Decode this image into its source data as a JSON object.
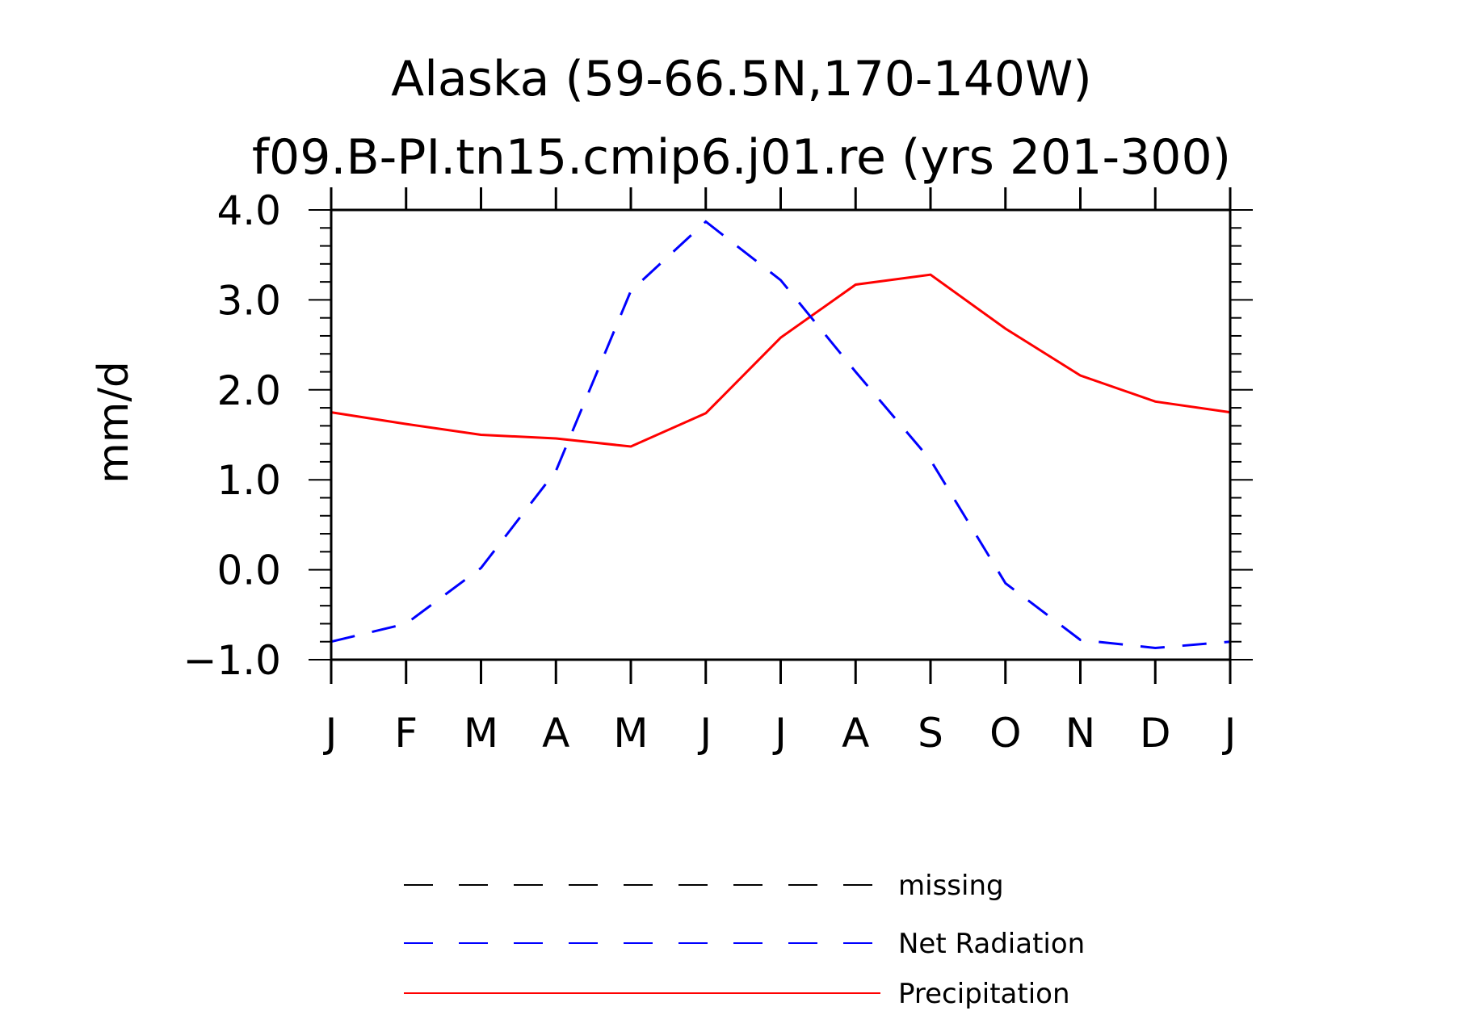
{
  "chart_data": {
    "type": "line",
    "title": "Alaska (59-66.5N,170-140W)",
    "subtitle": "f09.B-PI.tn15.cmip6.j01.re (yrs 201-300)",
    "xlabel": "",
    "ylabel": "mm/d",
    "categories": [
      "J",
      "F",
      "M",
      "A",
      "M",
      "J",
      "J",
      "A",
      "S",
      "O",
      "N",
      "D",
      "J"
    ],
    "ylim": [
      -1.0,
      4.0
    ],
    "yticks": [
      "-1.0",
      "0.0",
      "1.0",
      "2.0",
      "3.0",
      "4.0"
    ],
    "grid": false,
    "legend_position": "bottom",
    "series": [
      {
        "name": "Precipitation",
        "color": "#ff0000",
        "style": "solid",
        "values": [
          1.75,
          1.62,
          1.5,
          1.46,
          1.37,
          1.74,
          2.58,
          3.17,
          3.28,
          2.68,
          2.16,
          1.87,
          1.75
        ]
      },
      {
        "name": "Net Radiation",
        "color": "#0000ff",
        "style": "dashed",
        "values": [
          -0.8,
          -0.6,
          0.02,
          1.1,
          3.1,
          3.87,
          3.22,
          2.2,
          1.22,
          -0.15,
          -0.78,
          -0.87,
          -0.8
        ]
      }
    ],
    "legend": [
      {
        "label": "missing",
        "color": "#000000",
        "style": "dashed"
      },
      {
        "label": "Net Radiation",
        "color": "#0000ff",
        "style": "dashed"
      },
      {
        "label": "Precipitation",
        "color": "#ff0000",
        "style": "solid"
      }
    ]
  }
}
